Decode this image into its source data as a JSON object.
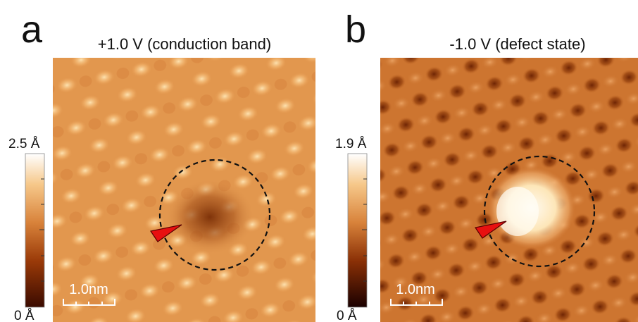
{
  "panels": [
    {
      "letter": "a",
      "title": "+1.0 V (conduction band)",
      "colorbar_max": "2.5 Å",
      "colorbar_min": "0 Å",
      "scale_bar": "1.0nm"
    },
    {
      "letter": "b",
      "title": "-1.0 V (defect state)",
      "colorbar_max": "1.9 Å",
      "colorbar_min": "0 Å",
      "scale_bar": "1.0nm"
    }
  ]
}
